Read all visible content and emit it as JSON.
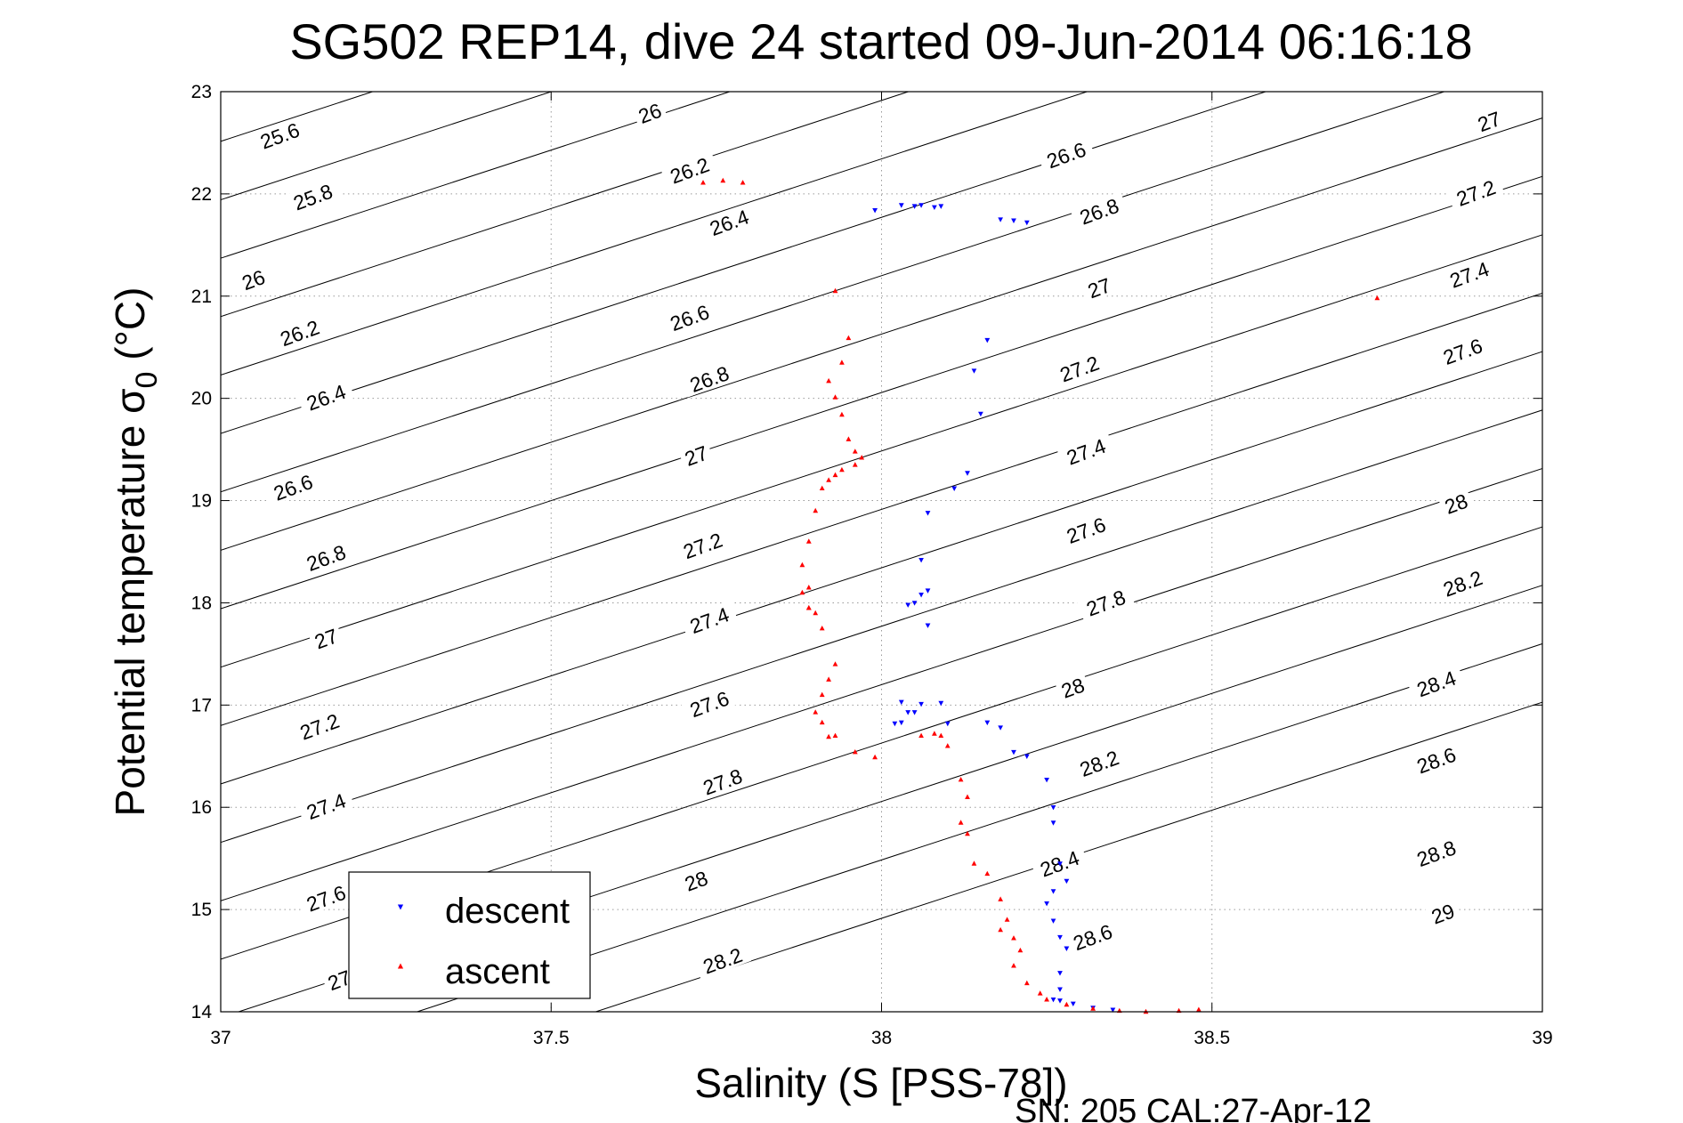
{
  "chart_data": {
    "type": "scatter",
    "title": "SG502 REP14, dive 24 started 09-Jun-2014 06:16:18",
    "xlabel": "Salinity (S [PSS-78])",
    "ylabel_main": "Potential temperature σ",
    "ylabel_sub": "0",
    "ylabel_unit": " (°C)",
    "xlim": [
      37,
      39
    ],
    "ylim": [
      14,
      23
    ],
    "xticks": [
      37,
      37.5,
      38,
      38.5,
      39
    ],
    "xtick_labels": [
      "37",
      "37.5",
      "38",
      "38.5",
      "39"
    ],
    "yticks": [
      14,
      15,
      16,
      17,
      18,
      19,
      20,
      21,
      22,
      23
    ],
    "ytick_labels": [
      "14",
      "15",
      "16",
      "17",
      "18",
      "19",
      "20",
      "21",
      "22",
      "23"
    ],
    "grid": true,
    "legend_position": "bottom-left",
    "footer": "SN: 205  CAL:27-Apr-12",
    "density_contours": {
      "levels": [
        25.6,
        25.8,
        26,
        26.2,
        26.4,
        26.6,
        26.8,
        27,
        27.2,
        27.4,
        27.6,
        27.8,
        28,
        28.2,
        28.4,
        28.6,
        28.8,
        29
      ],
      "labels": [
        {
          "text": "25.6",
          "x": 37.09,
          "y": 22.56
        },
        {
          "text": "25.8",
          "x": 37.14,
          "y": 21.96
        },
        {
          "text": "26",
          "x": 37.05,
          "y": 21.15
        },
        {
          "text": "26.2",
          "x": 37.12,
          "y": 20.63
        },
        {
          "text": "26.4",
          "x": 37.16,
          "y": 20.0
        },
        {
          "text": "26.6",
          "x": 37.11,
          "y": 19.12
        },
        {
          "text": "26.8",
          "x": 37.16,
          "y": 18.43
        },
        {
          "text": "27",
          "x": 37.16,
          "y": 17.64
        },
        {
          "text": "27.2",
          "x": 37.15,
          "y": 16.78
        },
        {
          "text": "27.4",
          "x": 37.16,
          "y": 16.0
        },
        {
          "text": "27.6",
          "x": 37.16,
          "y": 15.1
        },
        {
          "text": "27",
          "x": 37.18,
          "y": 14.3
        },
        {
          "text": "26",
          "x": 37.65,
          "y": 22.78
        },
        {
          "text": "26.2",
          "x": 37.71,
          "y": 22.22
        },
        {
          "text": "26.4",
          "x": 37.77,
          "y": 21.71
        },
        {
          "text": "26.6",
          "x": 37.71,
          "y": 20.78
        },
        {
          "text": "26.8",
          "x": 37.74,
          "y": 20.18
        },
        {
          "text": "27",
          "x": 37.72,
          "y": 19.43
        },
        {
          "text": "27.2",
          "x": 37.73,
          "y": 18.55
        },
        {
          "text": "27.4",
          "x": 37.74,
          "y": 17.82
        },
        {
          "text": "27.6",
          "x": 37.74,
          "y": 17.0
        },
        {
          "text": "27.8",
          "x": 37.76,
          "y": 16.24
        },
        {
          "text": "28",
          "x": 37.72,
          "y": 15.27
        },
        {
          "text": "28.2",
          "x": 37.76,
          "y": 14.49
        },
        {
          "text": "26.6",
          "x": 38.28,
          "y": 22.37
        },
        {
          "text": "26.8",
          "x": 38.33,
          "y": 21.82
        },
        {
          "text": "27",
          "x": 38.33,
          "y": 21.07
        },
        {
          "text": "27.2",
          "x": 38.3,
          "y": 20.28
        },
        {
          "text": "27.4",
          "x": 38.31,
          "y": 19.47
        },
        {
          "text": "27.6",
          "x": 38.31,
          "y": 18.7
        },
        {
          "text": "27.8",
          "x": 38.34,
          "y": 17.99
        },
        {
          "text": "28",
          "x": 38.29,
          "y": 17.16
        },
        {
          "text": "28.2",
          "x": 38.33,
          "y": 16.42
        },
        {
          "text": "28.4",
          "x": 38.27,
          "y": 15.44
        },
        {
          "text": "28.6",
          "x": 38.32,
          "y": 14.72
        },
        {
          "text": "27",
          "x": 38.92,
          "y": 22.7
        },
        {
          "text": "27.2",
          "x": 38.9,
          "y": 22.0
        },
        {
          "text": "27.4",
          "x": 38.89,
          "y": 21.2
        },
        {
          "text": "27.6",
          "x": 38.88,
          "y": 20.45
        },
        {
          "text": "28",
          "x": 38.87,
          "y": 18.96
        },
        {
          "text": "28.2",
          "x": 38.88,
          "y": 18.18
        },
        {
          "text": "28.4",
          "x": 38.84,
          "y": 17.2
        },
        {
          "text": "28.6",
          "x": 38.84,
          "y": 16.45
        },
        {
          "text": "28.8",
          "x": 38.84,
          "y": 15.54
        },
        {
          "text": "29",
          "x": 38.85,
          "y": 14.95
        }
      ]
    },
    "series": [
      {
        "name": "descent",
        "color": "#0000ff",
        "marker": "triangle-down",
        "x": [
          37.99,
          38.03,
          38.05,
          38.06,
          38.08,
          38.09,
          38.18,
          38.2,
          38.22,
          38.16,
          38.14,
          38.15,
          38.13,
          38.11,
          38.07,
          38.06,
          38.07,
          38.05,
          38.04,
          38.06,
          38.07,
          38.03,
          38.04,
          38.05,
          38.09,
          38.06,
          38.03,
          38.02,
          38.1,
          38.16,
          38.18,
          38.2,
          38.22,
          38.25,
          38.26,
          38.26,
          38.27,
          38.28,
          38.26,
          38.25,
          38.26,
          38.27,
          38.28,
          38.27,
          38.27,
          38.26,
          38.27,
          38.29,
          38.32,
          38.35
        ],
        "y": [
          21.84,
          21.89,
          21.88,
          21.89,
          21.87,
          21.88,
          21.75,
          21.74,
          21.72,
          20.57,
          20.27,
          19.85,
          19.27,
          19.12,
          18.88,
          18.42,
          18.12,
          18.0,
          17.98,
          18.08,
          17.78,
          17.03,
          16.93,
          16.93,
          17.02,
          17.01,
          16.83,
          16.82,
          16.82,
          16.83,
          16.78,
          16.54,
          16.5,
          16.27,
          16.0,
          15.85,
          15.45,
          15.28,
          15.18,
          15.06,
          14.89,
          14.73,
          14.62,
          14.38,
          14.22,
          14.12,
          14.11,
          14.08,
          14.04,
          14.02
        ]
      },
      {
        "name": "ascent",
        "color": "#ff0000",
        "marker": "triangle-up",
        "x": [
          37.73,
          37.76,
          37.79,
          37.93,
          37.95,
          37.94,
          37.92,
          37.93,
          37.94,
          37.95,
          37.96,
          37.97,
          37.96,
          37.94,
          37.93,
          37.92,
          37.91,
          37.9,
          37.89,
          37.88,
          37.89,
          37.88,
          37.89,
          37.9,
          37.89,
          37.91,
          37.93,
          37.92,
          37.91,
          37.9,
          37.91,
          37.92,
          37.93,
          37.96,
          37.99,
          38.06,
          38.08,
          38.09,
          38.1,
          38.12,
          38.13,
          38.12,
          38.13,
          38.14,
          38.16,
          38.18,
          38.19,
          38.18,
          38.2,
          38.21,
          38.2,
          38.22,
          38.24,
          38.25,
          38.28,
          38.32,
          38.36,
          38.4,
          38.45,
          38.48,
          38.75
        ],
        "y": [
          22.11,
          22.13,
          22.11,
          21.05,
          20.59,
          20.35,
          20.17,
          20.01,
          19.84,
          19.6,
          19.48,
          19.42,
          19.35,
          19.3,
          19.25,
          19.2,
          19.12,
          18.9,
          18.6,
          18.37,
          18.15,
          18.1,
          17.95,
          17.9,
          17.95,
          17.75,
          17.4,
          17.25,
          17.1,
          16.93,
          16.83,
          16.69,
          16.7,
          16.54,
          16.49,
          16.7,
          16.72,
          16.7,
          16.6,
          16.27,
          16.1,
          15.85,
          15.74,
          15.45,
          15.35,
          15.1,
          14.9,
          14.8,
          14.72,
          14.6,
          14.45,
          14.28,
          14.18,
          14.12,
          14.07,
          14.03,
          14.01,
          14.0,
          14.01,
          14.02,
          20.98
        ]
      }
    ]
  }
}
